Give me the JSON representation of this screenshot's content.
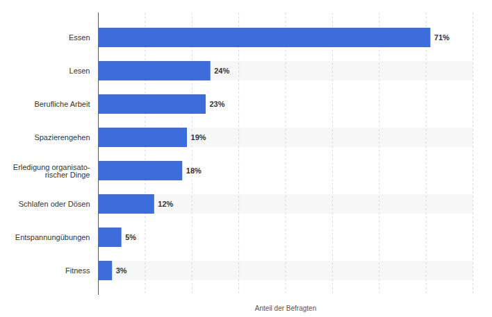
{
  "chart_data": {
    "type": "bar",
    "orientation": "horizontal",
    "categories": [
      "Essen",
      "Lesen",
      "Berufliche Arbeit",
      "Spazierengehen",
      "Erledigung organisato-\nrischer Dinge",
      "Schlafen oder Dösen",
      "Entspannungübungen",
      "Fitness"
    ],
    "values": [
      71,
      24,
      23,
      19,
      18,
      12,
      5,
      3
    ],
    "value_labels": [
      "71%",
      "24%",
      "23%",
      "19%",
      "18%",
      "12%",
      "5%",
      "3%"
    ],
    "data_labels": true,
    "color": "#3d6ddb",
    "x_label": "Anteil der Befragten",
    "xlim": [
      0,
      80
    ],
    "xticks": [
      0,
      10,
      20,
      30,
      40,
      50,
      60,
      70,
      80
    ],
    "tick_labels": "y",
    "grid": true
  }
}
